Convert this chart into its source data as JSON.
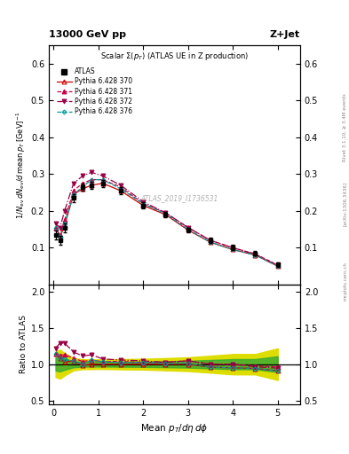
{
  "title_top_left": "13000 GeV pp",
  "title_top_right": "Z+Jet",
  "plot_title": "Scalar Σ(p_T) (ATLAS UE in Z production)",
  "watermark": "ATLAS_2019_I1736531",
  "right_label1": "Rivet 3.1.10, ≥ 3.4M events",
  "right_label2": "[arXiv:1306.3436]",
  "right_label3": "mcplots.cern.ch",
  "x_data": [
    0.05,
    0.15,
    0.25,
    0.45,
    0.65,
    0.85,
    1.1,
    1.5,
    2.0,
    2.5,
    3.0,
    3.5,
    4.0,
    4.5,
    5.0
  ],
  "atlas_y": [
    0.135,
    0.12,
    0.155,
    0.235,
    0.265,
    0.27,
    0.275,
    0.255,
    0.215,
    0.19,
    0.148,
    0.12,
    0.1,
    0.085,
    0.055
  ],
  "atlas_yerr": [
    0.012,
    0.012,
    0.012,
    0.01,
    0.009,
    0.009,
    0.009,
    0.009,
    0.008,
    0.008,
    0.007,
    0.007,
    0.007,
    0.006,
    0.006
  ],
  "py370_y": [
    0.155,
    0.13,
    0.16,
    0.245,
    0.26,
    0.27,
    0.275,
    0.255,
    0.215,
    0.19,
    0.148,
    0.115,
    0.095,
    0.08,
    0.05
  ],
  "py371_y": [
    0.155,
    0.135,
    0.175,
    0.255,
    0.275,
    0.285,
    0.285,
    0.265,
    0.22,
    0.195,
    0.155,
    0.12,
    0.1,
    0.083,
    0.053
  ],
  "py372_y": [
    0.165,
    0.155,
    0.2,
    0.275,
    0.295,
    0.305,
    0.295,
    0.27,
    0.225,
    0.195,
    0.155,
    0.12,
    0.1,
    0.082,
    0.052
  ],
  "py376_y": [
    0.155,
    0.13,
    0.165,
    0.245,
    0.265,
    0.285,
    0.285,
    0.26,
    0.22,
    0.192,
    0.15,
    0.115,
    0.095,
    0.08,
    0.05
  ],
  "color_370": "#cc0000",
  "color_371": "#cc0044",
  "color_372": "#990044",
  "color_376": "#009999",
  "band_green": "#33aa33",
  "band_yellow": "#dddd00",
  "ylim_main": [
    0.0,
    0.65
  ],
  "yticks_main": [
    0.1,
    0.2,
    0.3,
    0.4,
    0.5,
    0.6
  ],
  "ylim_ratio": [
    0.45,
    2.1
  ],
  "yticks_ratio": [
    0.5,
    1.0,
    1.5,
    2.0
  ],
  "xlim": [
    -0.1,
    5.5
  ]
}
